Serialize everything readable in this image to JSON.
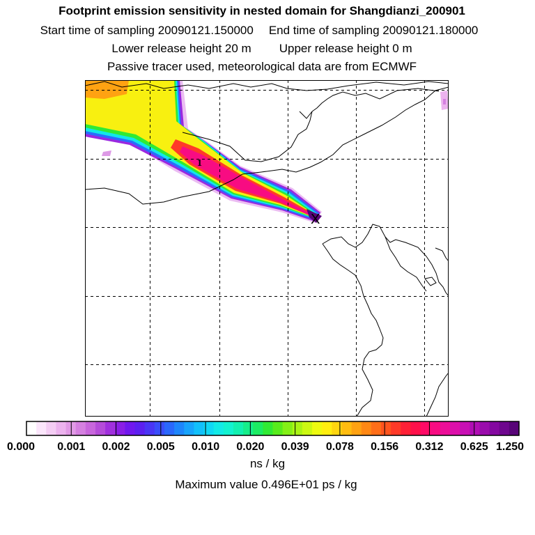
{
  "header": {
    "title": "Footprint emission sensitivity in nested domain for Shangdianzi_200901",
    "start_label": "Start time of sampling 20090121.150000",
    "end_label": "End time of sampling 20090121.180000",
    "lower_label": "Lower release height   20 m",
    "upper_label": "Upper release height    0 m",
    "tracer_note": "Passive tracer used, meteorological data are from ECMWF"
  },
  "chart_data": {
    "type": "heatmap",
    "title": "Footprint emission sensitivity in nested domain for Shangdianzi_200901",
    "receptor_marker": "1",
    "source_marker": "X",
    "colorbar": {
      "unit": "ns / kg",
      "tick_labels": [
        "0.000",
        "0.001",
        "0.002",
        "0.005",
        "0.010",
        "0.020",
        "0.039",
        "0.078",
        "0.156",
        "0.312",
        "0.625",
        "1.250"
      ],
      "colors": [
        "#ffffff",
        "#fbe6fb",
        "#f4cdf4",
        "#ecb3ee",
        "#e19ae6",
        "#d580e0",
        "#c866dc",
        "#b54cd9",
        "#a030dd",
        "#8a1ee6",
        "#7018ee",
        "#5c20f0",
        "#4a36f5",
        "#3a4efa",
        "#2a68fc",
        "#1e86fc",
        "#18a4fc",
        "#12c0fa",
        "#10d8f4",
        "#12eae6",
        "#12f2d0",
        "#12f0b0",
        "#16ee8a",
        "#1cec62",
        "#30ea34",
        "#58ec1c",
        "#84f016",
        "#aaf414",
        "#ccf812",
        "#eefa10",
        "#ffee10",
        "#ffd610",
        "#ffbc10",
        "#ffa212",
        "#ff8814",
        "#ff6e18",
        "#ff541e",
        "#ff3a28",
        "#ff2036",
        "#ff104a",
        "#ff0a66",
        "#f80c82",
        "#ec0e98",
        "#dc10aa",
        "#c810b4",
        "#b00eb4",
        "#9a0cac",
        "#8408a0",
        "#6e068e",
        "#580478"
      ]
    },
    "max_value_text": "Maximum value  0.496E+01 ps / kg"
  }
}
